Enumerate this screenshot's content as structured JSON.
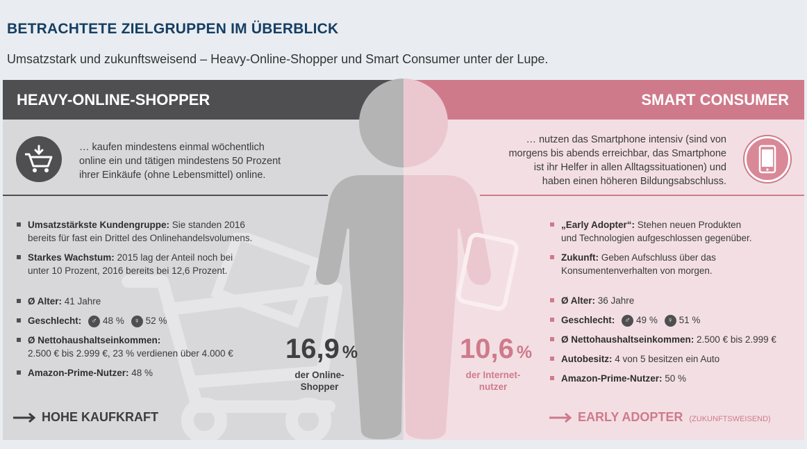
{
  "header": {
    "title": "BETRACHTETE ZIELGRUPPEN IM ÜBERBLICK",
    "subtitle": "Umsatzstark und zukunftsweisend – Heavy-Online-Shopper und Smart Consumer unter der Lupe."
  },
  "left": {
    "title": "HEAVY-ONLINE-SHOPPER",
    "intro": [
      "… kaufen mindestens einmal wöchentlich",
      "online ein und tätigen mindestens 50 Prozent",
      "ihrer Einkäufe (ohne Lebensmittel) online."
    ],
    "icon": "shopping-cart-icon",
    "bullets": [
      {
        "label": "Umsatzstärkste Kundengruppe:",
        "text": " Sie standen 2016",
        "text2": "bereits für fast ein Drittel des Onlinehandelsvolumens."
      },
      {
        "label": "Starkes Wachstum:",
        "text": " 2015 lag der Anteil noch bei",
        "text2": "unter 10 Prozent, 2016 bereits bei 12,6 Prozent."
      }
    ],
    "facts": {
      "age_label": "Ø Alter:",
      "age": " 41 Jahre",
      "gender_label": "Geschlecht:",
      "male": "48 %",
      "female": "52 %",
      "income_label": "Ø Nettohaushaltseinkommen:",
      "income": "2.500 € bis 2.999 €, 23 % verdienen über 4.000 €",
      "prime_label": "Amazon-Prime-Nutzer:",
      "prime": " 48 %"
    },
    "stat": {
      "value": "16,9",
      "unit": "%",
      "label1": "der Online-",
      "label2": "Shopper"
    },
    "footer": "HOHE KAUFKRAFT",
    "colors": {
      "band": "#4f4f52",
      "bg": "#d8d8da"
    }
  },
  "right": {
    "title": "SMART CONSUMER",
    "intro": [
      "… nutzen das Smartphone intensiv (sind von",
      "morgens bis abends erreichbar, das Smartphone",
      "ist ihr Helfer in allen Alltagssituationen) und",
      "haben einen höheren Bildungsabschluss."
    ],
    "icon": "smartphone-icon",
    "bullets": [
      {
        "label": "„Early Adopter“:",
        "text": " Stehen neuen Produkten",
        "text2": "und Technologien aufgeschlossen gegenüber."
      },
      {
        "label": "Zukunft:",
        "text": " Geben Aufschluss über das",
        "text2": "Konsumentenverhalten von morgen."
      }
    ],
    "facts": {
      "age_label": "Ø Alter:",
      "age": " 36 Jahre",
      "gender_label": "Geschlecht:",
      "male": "49 %",
      "female": "51 %",
      "income_label": "Ø Nettohaushaltseinkommen:",
      "income": " 2.500 € bis 2.999 €",
      "car_label": "Autobesitz:",
      "car": " 4 von 5 besitzen ein Auto",
      "prime_label": "Amazon-Prime-Nutzer:",
      "prime": " 50 %"
    },
    "stat": {
      "value": "10,6",
      "unit": "%",
      "label1": "der Internet-",
      "label2": "nutzer"
    },
    "footer": "EARLY ADOPTER",
    "footer_note": "(ZUKUNFTSWEISEND)",
    "colors": {
      "band": "#cf7a8b",
      "bg": "#f3dfe3"
    }
  }
}
